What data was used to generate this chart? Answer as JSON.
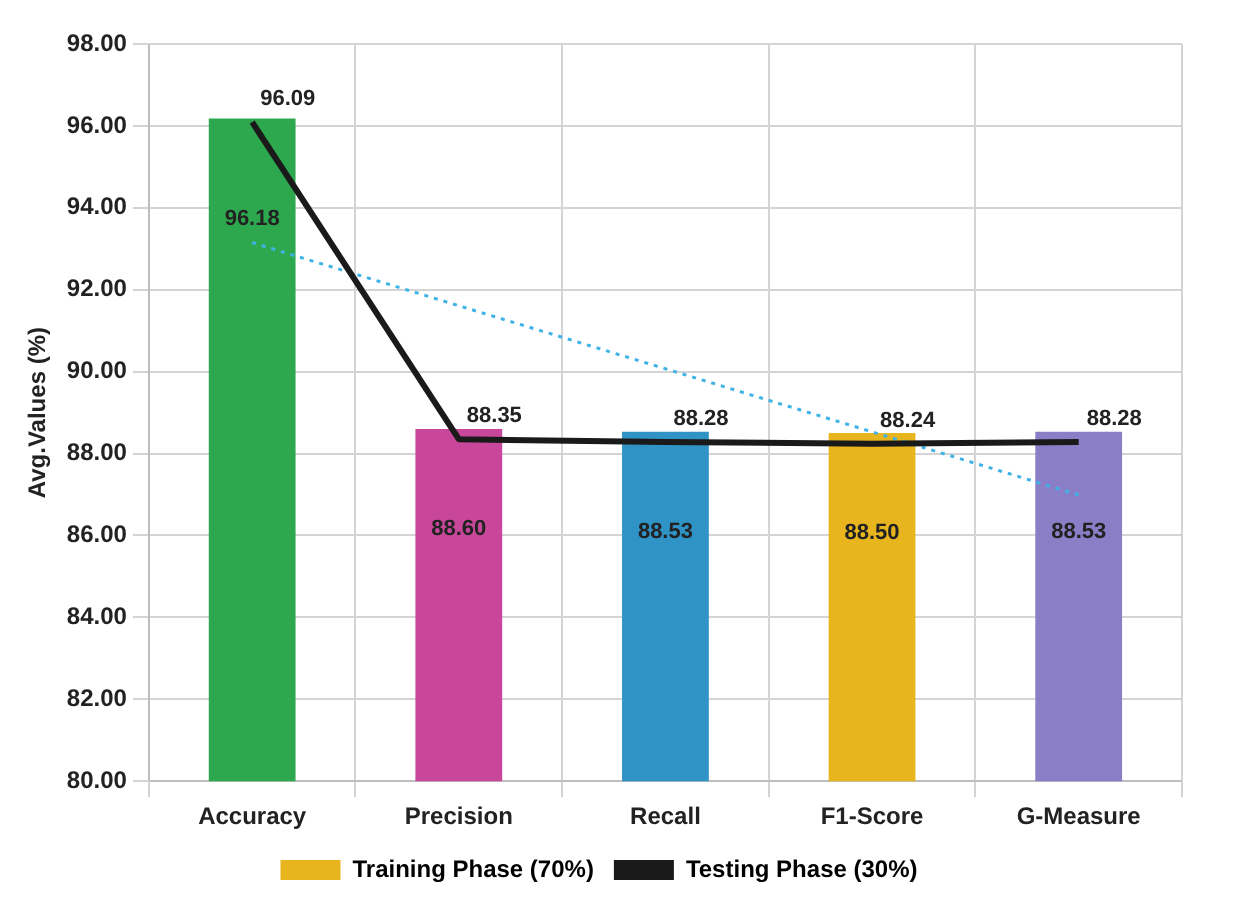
{
  "chart_data": {
    "type": "bar",
    "ylabel": "Avg.Values (%)",
    "categories": [
      "Accuracy",
      "Precision",
      "Recall",
      "F1-Score",
      "G-Measure"
    ],
    "series": [
      {
        "name": "Training Phase (70%)",
        "color": "#e8b51f",
        "colors": [
          "#2ea84f",
          "#c9479a",
          "#2f93c6",
          "#e8b51f",
          "#8a7fc6"
        ],
        "values": [
          96.18,
          88.6,
          88.53,
          88.5,
          88.53
        ],
        "value_labels": [
          "96.18",
          "88.60",
          "88.53",
          "88.50",
          "88.53"
        ]
      },
      {
        "name": "Testing Phase (30%)",
        "type": "line",
        "color": "#1a1a1a",
        "values": [
          96.09,
          88.35,
          88.28,
          88.24,
          88.28
        ],
        "value_labels": [
          "96.09",
          "88.35",
          "88.28",
          "88.24",
          "88.28"
        ]
      },
      {
        "type": "line",
        "color": "#3fb2e6",
        "line_style": "dotted",
        "values": [
          93.15,
          91.61,
          90.07,
          88.53,
          86.99
        ]
      }
    ],
    "ylim": [
      80,
      98
    ],
    "yticks": [
      {
        "value": 80,
        "label": "80.00"
      },
      {
        "value": 82,
        "label": "82.00"
      },
      {
        "value": 84,
        "label": "84.00"
      },
      {
        "value": 86,
        "label": "86.00"
      },
      {
        "value": 88,
        "label": "88.00"
      },
      {
        "value": 90,
        "label": "90.00"
      },
      {
        "value": 92,
        "label": "92.00"
      },
      {
        "value": 94,
        "label": "94.00"
      },
      {
        "value": 96,
        "label": "96.00"
      },
      {
        "value": 98,
        "label": "98.00"
      }
    ],
    "grid": true,
    "legend": "bottom",
    "marker": "none",
    "line_style": "solid"
  }
}
